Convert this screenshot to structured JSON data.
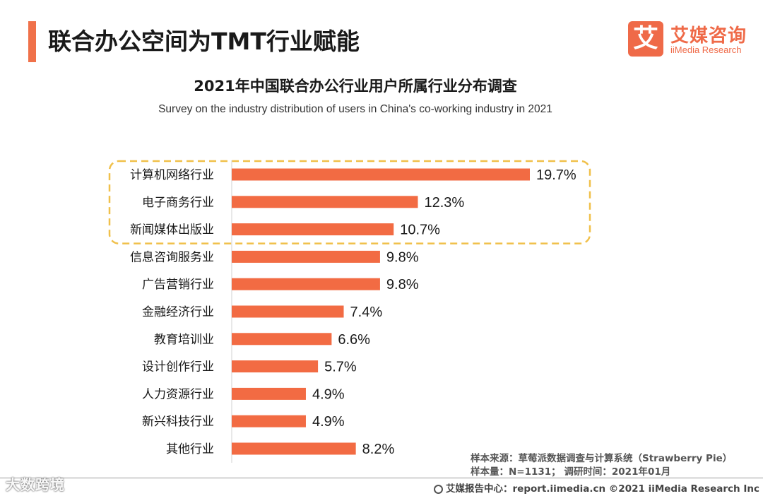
{
  "header": {
    "title": "联合办公空间为TMT行业赋能",
    "accent_color": "#f0714a"
  },
  "logo": {
    "mark": "艾",
    "name_cn": "艾媒咨询",
    "name_en": "iiMedia Research"
  },
  "chart_data": {
    "type": "bar",
    "orientation": "horizontal",
    "title": "2021年中国联合办公行业用户所属行业分布调查",
    "subtitle": "Survey on the industry distribution of users in China's co-working industry in 2021",
    "categories": [
      "计算机网络行业",
      "电子商务行业",
      "新闻媒体出版业",
      "信息咨询服务业",
      "广告营销行业",
      "金融经济行业",
      "教育培训业",
      "设计创作行业",
      "人力资源行业",
      "新兴科技行业",
      "其他行业"
    ],
    "values": [
      19.7,
      12.3,
      10.7,
      9.8,
      9.8,
      7.4,
      6.6,
      5.7,
      4.9,
      4.9,
      8.2
    ],
    "value_labels": [
      "19.7%",
      "12.3%",
      "10.7%",
      "9.8%",
      "9.8%",
      "7.4%",
      "6.6%",
      "5.7%",
      "4.9%",
      "4.9%",
      "8.2%"
    ],
    "unit": "%",
    "xlim": [
      0,
      19.7
    ],
    "highlighted_categories": [
      "计算机网络行业",
      "电子商务行业",
      "新闻媒体出版业"
    ],
    "bar_color": "#f26b43",
    "highlight_color": "#f0c04a",
    "xlabel": "",
    "ylabel": ""
  },
  "footer": {
    "source": "样本来源：草莓派数据调查与计算系统（Strawberry Pie）",
    "sample": "样本量：N=1131；  调研时间：2021年01月",
    "report_center": "艾媒报告中心：report.iimedia.cn   ©2021  iiMedia Research  Inc",
    "watermark": "大数跨境"
  }
}
